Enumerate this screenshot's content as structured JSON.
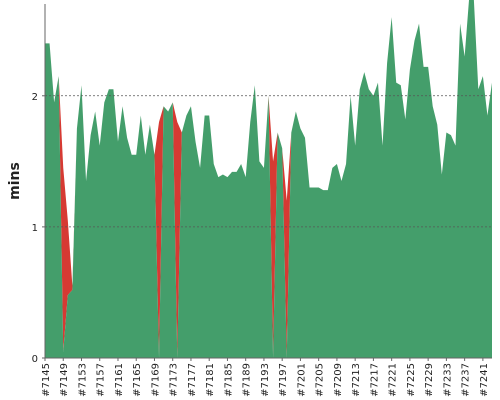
{
  "chart_data": {
    "type": "area",
    "title": "",
    "ylabel": "mins",
    "xlabel": "",
    "ylim": [
      0,
      2.7
    ],
    "y_ticks": [
      0,
      1,
      2
    ],
    "grid": "horizontal dashed lines at y ticks",
    "colors": {
      "above": "#449e6b",
      "below": "#d63a33"
    },
    "x": [
      "#7145",
      "#7146",
      "#7147",
      "#7148",
      "#7149",
      "#7150",
      "#7151",
      "#7152",
      "#7153",
      "#7154",
      "#7155",
      "#7156",
      "#7157",
      "#7158",
      "#7159",
      "#7160",
      "#7161",
      "#7162",
      "#7163",
      "#7164",
      "#7165",
      "#7166",
      "#7167",
      "#7168",
      "#7169",
      "#7170",
      "#7171",
      "#7172",
      "#7173",
      "#7174",
      "#7175",
      "#7176",
      "#7177",
      "#7178",
      "#7179",
      "#7180",
      "#7181",
      "#7182",
      "#7183",
      "#7184",
      "#7185",
      "#7186",
      "#7187",
      "#7188",
      "#7189",
      "#7190",
      "#7191",
      "#7192",
      "#7193",
      "#7194",
      "#7195",
      "#7196",
      "#7197",
      "#7198",
      "#7199",
      "#7200",
      "#7201",
      "#7202",
      "#7203",
      "#7204",
      "#7205",
      "#7206",
      "#7207",
      "#7208",
      "#7209",
      "#7210",
      "#7211",
      "#7212",
      "#7213",
      "#7214",
      "#7215",
      "#7216",
      "#7217",
      "#7218",
      "#7219",
      "#7220",
      "#7221",
      "#7222",
      "#7223",
      "#7224",
      "#7225",
      "#7226",
      "#7227",
      "#7228",
      "#7229",
      "#7230",
      "#7231",
      "#7232",
      "#7233",
      "#7234",
      "#7235",
      "#7236",
      "#7237",
      "#7238",
      "#7239",
      "#7240",
      "#7241",
      "#7242",
      "#7243"
    ],
    "x_tick_labels": [
      "#7145",
      "#7149",
      "#7153",
      "#7157",
      "#7161",
      "#7165",
      "#7169",
      "#7173",
      "#7177",
      "#7181",
      "#7185",
      "#7189",
      "#7193",
      "#7197",
      "#7201",
      "#7205",
      "#7209",
      "#7213",
      "#7217",
      "#7221",
      "#7225",
      "#7229",
      "#7233",
      "#7237",
      "#7241"
    ],
    "series": [
      {
        "values": [
          2.4,
          2.4,
          1.95,
          2.15,
          0.05,
          0.48,
          0.52,
          1.75,
          2.08,
          1.35,
          1.7,
          1.88,
          1.62,
          1.95,
          2.05,
          2.05,
          1.65,
          1.92,
          1.68,
          1.55,
          1.55,
          1.85,
          1.55,
          1.78,
          1.55,
          0.0,
          1.92,
          1.88,
          1.95,
          0.0,
          1.72,
          1.85,
          1.92,
          1.65,
          1.45,
          1.85,
          1.85,
          1.48,
          1.38,
          1.4,
          1.38,
          1.42,
          1.42,
          1.48,
          1.38,
          1.8,
          2.08,
          1.5,
          1.45,
          2.0,
          0.0,
          1.72,
          1.6,
          0.0,
          1.72,
          1.88,
          1.75,
          1.68,
          1.3,
          1.3,
          1.3,
          1.28,
          1.28,
          1.45,
          1.48,
          1.35,
          1.48,
          2.0,
          1.62,
          2.05,
          2.18,
          2.05,
          2.0,
          2.1,
          1.62,
          2.25,
          2.6,
          2.1,
          2.08,
          1.82,
          2.2,
          2.42,
          2.55,
          2.22,
          2.22,
          1.92,
          1.78,
          1.4,
          1.72,
          1.7,
          1.62,
          2.55,
          2.3,
          2.75,
          2.75,
          2.05,
          2.15,
          1.85,
          2.1
        ],
        "threshold": [
          2.4,
          2.4,
          1.95,
          2.15,
          1.45,
          1.05,
          0.55,
          1.75,
          2.08,
          1.35,
          1.7,
          1.88,
          1.62,
          1.95,
          2.05,
          2.05,
          1.65,
          1.92,
          1.68,
          1.55,
          1.55,
          1.85,
          1.55,
          1.78,
          1.55,
          1.8,
          1.92,
          1.88,
          1.95,
          1.8,
          1.72,
          1.85,
          1.92,
          1.65,
          1.45,
          1.85,
          1.85,
          1.48,
          1.38,
          1.4,
          1.38,
          1.42,
          1.42,
          1.48,
          1.38,
          1.8,
          2.08,
          1.5,
          1.45,
          2.0,
          1.5,
          1.72,
          1.6,
          1.2,
          1.72,
          1.88,
          1.75,
          1.68,
          1.3,
          1.3,
          1.3,
          1.28,
          1.28,
          1.45,
          1.48,
          1.35,
          1.48,
          2.0,
          1.62,
          2.05,
          2.18,
          2.05,
          2.0,
          2.1,
          1.62,
          2.25,
          2.6,
          2.1,
          2.08,
          1.82,
          2.2,
          2.42,
          2.55,
          2.22,
          2.22,
          1.92,
          1.78,
          1.4,
          1.72,
          1.7,
          1.62,
          2.55,
          2.3,
          2.75,
          2.75,
          2.05,
          2.15,
          1.85,
          2.1
        ]
      }
    ]
  }
}
